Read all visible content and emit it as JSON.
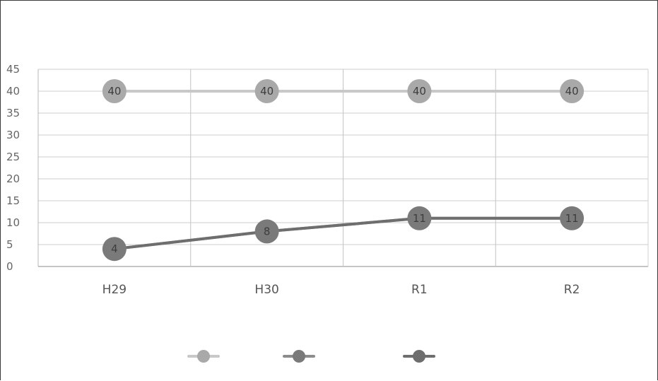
{
  "chart_data": {
    "type": "line",
    "title": "",
    "xlabel": "",
    "ylabel": "",
    "categories": [
      "H29",
      "H30",
      "R1",
      "R2"
    ],
    "ylim": [
      0,
      45
    ],
    "yticks": [
      0,
      5,
      10,
      15,
      20,
      25,
      30,
      35,
      40,
      45
    ],
    "grid": true,
    "legend_position": "bottom",
    "series": [
      {
        "values": [
          40,
          40,
          40,
          40
        ],
        "color": "#c8c8c8",
        "marker_color": "#a9a9a9",
        "show_labels": true
      },
      {
        "values": [
          4,
          8,
          11,
          11
        ],
        "color": "#8c8c8c",
        "marker_color": "#7a7a7a",
        "show_labels": true
      },
      {
        "values": [
          4,
          8,
          11,
          11
        ],
        "color": "#6e6e6e",
        "marker_color": "#6e6e6e",
        "show_labels": false
      }
    ]
  }
}
